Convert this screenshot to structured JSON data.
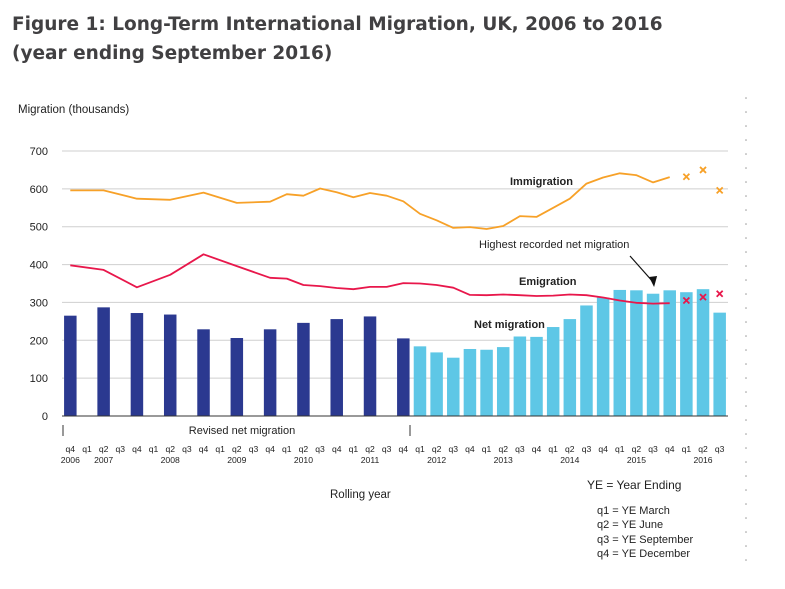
{
  "figure": {
    "title": "Figure 1: Long-Term International Migration, UK, 2006 to 2016 (year ending September 2016)"
  },
  "colors": {
    "immigration": "#f7a128",
    "emigration": "#e8174b",
    "revised_bar": "#2b3990",
    "bar": "#5ec7e6",
    "grid": "#cfcfcf"
  },
  "chart_data": {
    "type": "bar",
    "ylabel": "Migration (thousands)",
    "xlabel": "Rolling year",
    "ylim": [
      0,
      700
    ],
    "yticks": [
      0,
      100,
      200,
      300,
      400,
      500,
      600,
      700
    ],
    "grid": true,
    "categories": [
      "q4 2006",
      "q1 2007",
      "q2 2007",
      "q3 2007",
      "q4 2007",
      "q1 2008",
      "q2 2008",
      "q3 2008",
      "q4 2008",
      "q1 2009",
      "q2 2009",
      "q3 2009",
      "q4 2009",
      "q1 2010",
      "q2 2010",
      "q3 2010",
      "q4 2010",
      "q1 2011",
      "q2 2011",
      "q3 2011",
      "q4 2011",
      "q1 2012",
      "q2 2012",
      "q3 2012",
      "q4 2012",
      "q1 2013",
      "q2 2013",
      "q3 2013",
      "q4 2013",
      "q1 2014",
      "q2 2014",
      "q3 2014",
      "q4 2014",
      "q1 2015",
      "q2 2015",
      "q3 2015",
      "q4 2015",
      "q1 2016",
      "q2 2016",
      "q3 2016"
    ],
    "quarter_labels": [
      "q4",
      "q1",
      "q2",
      "q3",
      "q4",
      "q1",
      "q2",
      "q3",
      "q4",
      "q1",
      "q2",
      "q3",
      "q4",
      "q1",
      "q2",
      "q3",
      "q4",
      "q1",
      "q2",
      "q3",
      "q4",
      "q1",
      "q2",
      "q3",
      "q4",
      "q1",
      "q2",
      "q3",
      "q4",
      "q1",
      "q2",
      "q3",
      "q4",
      "q1",
      "q2",
      "q3",
      "q4",
      "q1",
      "q2",
      "q3"
    ],
    "year_labels": [
      {
        "index": 0,
        "label": "2006"
      },
      {
        "index": 2,
        "label": "2007"
      },
      {
        "index": 6,
        "label": "2008"
      },
      {
        "index": 10,
        "label": "2009"
      },
      {
        "index": 14,
        "label": "2010"
      },
      {
        "index": 18,
        "label": "2011"
      },
      {
        "index": 22,
        "label": "2012"
      },
      {
        "index": 26,
        "label": "2013"
      },
      {
        "index": 30,
        "label": "2014"
      },
      {
        "index": 34,
        "label": "2015"
      },
      {
        "index": 38,
        "label": "2016"
      }
    ],
    "series": [
      {
        "name": "Net migration",
        "kind": "bar",
        "values": [
          265,
          null,
          287,
          null,
          272,
          null,
          268,
          null,
          229,
          null,
          206,
          null,
          229,
          null,
          246,
          null,
          256,
          null,
          263,
          null,
          205,
          184,
          168,
          154,
          177,
          175,
          182,
          210,
          209,
          235,
          256,
          292,
          313,
          333,
          332,
          323,
          332,
          327,
          335,
          273
        ]
      },
      {
        "name": "Immigration",
        "kind": "line",
        "values": [
          596,
          null,
          596,
          null,
          574,
          null,
          571,
          null,
          590,
          null,
          563,
          null,
          566,
          586,
          582,
          601,
          591,
          578,
          589,
          582,
          567,
          534,
          517,
          497,
          499,
          494,
          502,
          528,
          526,
          550,
          574,
          614,
          630,
          641,
          636,
          617,
          631,
          null,
          null,
          null
        ],
        "provisional": [
          null,
          null,
          null,
          null,
          null,
          null,
          null,
          null,
          null,
          null,
          null,
          null,
          null,
          null,
          null,
          null,
          null,
          null,
          null,
          null,
          null,
          null,
          null,
          null,
          null,
          null,
          null,
          null,
          null,
          null,
          null,
          null,
          null,
          null,
          null,
          null,
          null,
          632,
          650,
          596
        ]
      },
      {
        "name": "Emigration",
        "kind": "line",
        "values": [
          398,
          null,
          386,
          null,
          340,
          null,
          373,
          null,
          427,
          null,
          396,
          null,
          365,
          363,
          346,
          343,
          338,
          335,
          341,
          341,
          351,
          350,
          346,
          339,
          320,
          319,
          321,
          319,
          317,
          318,
          321,
          319,
          313,
          305,
          299,
          297,
          298,
          null,
          null,
          null
        ],
        "provisional": [
          null,
          null,
          null,
          null,
          null,
          null,
          null,
          null,
          null,
          null,
          null,
          null,
          null,
          null,
          null,
          null,
          null,
          null,
          null,
          null,
          null,
          null,
          null,
          null,
          null,
          null,
          null,
          null,
          null,
          null,
          null,
          null,
          null,
          null,
          null,
          null,
          null,
          305,
          314,
          323
        ]
      }
    ],
    "annotations": {
      "immigration": "Immigration",
      "emigration": "Emigration",
      "net_migration": "Net migration",
      "highest": "Highest recorded net migration",
      "revised": "Revised net migration"
    },
    "notes": {
      "ye": "YE = Year Ending",
      "q1": "q1 = YE March",
      "q2": "q2 = YE June",
      "q3": "q3 = YE September",
      "q4": "q4 = YE December"
    }
  }
}
